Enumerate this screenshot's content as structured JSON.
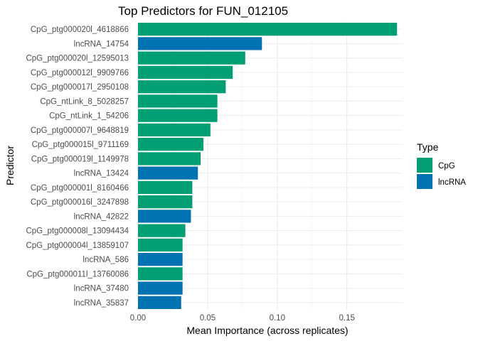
{
  "chart_data": {
    "type": "bar",
    "orientation": "horizontal",
    "title": "Top Predictors for FUN_012105",
    "xlabel": "Mean Importance (across replicates)",
    "ylabel": "Predictor",
    "xlim": [
      0,
      0.19
    ],
    "x_ticks": [
      0,
      0.05,
      0.1,
      0.15
    ],
    "x_tick_labels": [
      "0.00",
      "0.05",
      "0.10",
      "0.15"
    ],
    "grid": true,
    "legend": {
      "title": "Type",
      "position": "right",
      "entries": [
        {
          "name": "CpG",
          "color": "#009E73"
        },
        {
          "name": "lncRNA",
          "color": "#0072B2"
        }
      ]
    },
    "categories": [
      "CpG_ptg000020l_4618866",
      "lncRNA_14754",
      "CpG_ptg000020l_12595013",
      "CpG_ptg000012l_9909766",
      "CpG_ptg000017l_2950108",
      "CpG_ntLink_8_5028257",
      "CpG_ntLink_1_54206",
      "CpG_ptg000007l_9648819",
      "CpG_ptg000015l_9711169",
      "CpG_ptg000019l_1149978",
      "lncRNA_13424",
      "CpG_ptg000001l_8160466",
      "CpG_ptg000016l_3247898",
      "lncRNA_42822",
      "CpG_ptg000008l_13094434",
      "CpG_ptg000004l_13859107",
      "lncRNA_586",
      "CpG_ptg000011l_13760086",
      "lncRNA_37480",
      "lncRNA_35837"
    ],
    "values": [
      0.186,
      0.089,
      0.077,
      0.068,
      0.063,
      0.057,
      0.057,
      0.052,
      0.047,
      0.045,
      0.043,
      0.039,
      0.039,
      0.038,
      0.034,
      0.032,
      0.032,
      0.032,
      0.032,
      0.031
    ],
    "types": [
      "CpG",
      "lncRNA",
      "CpG",
      "CpG",
      "CpG",
      "CpG",
      "CpG",
      "CpG",
      "CpG",
      "CpG",
      "lncRNA",
      "CpG",
      "CpG",
      "lncRNA",
      "CpG",
      "CpG",
      "lncRNA",
      "CpG",
      "lncRNA",
      "lncRNA"
    ]
  }
}
